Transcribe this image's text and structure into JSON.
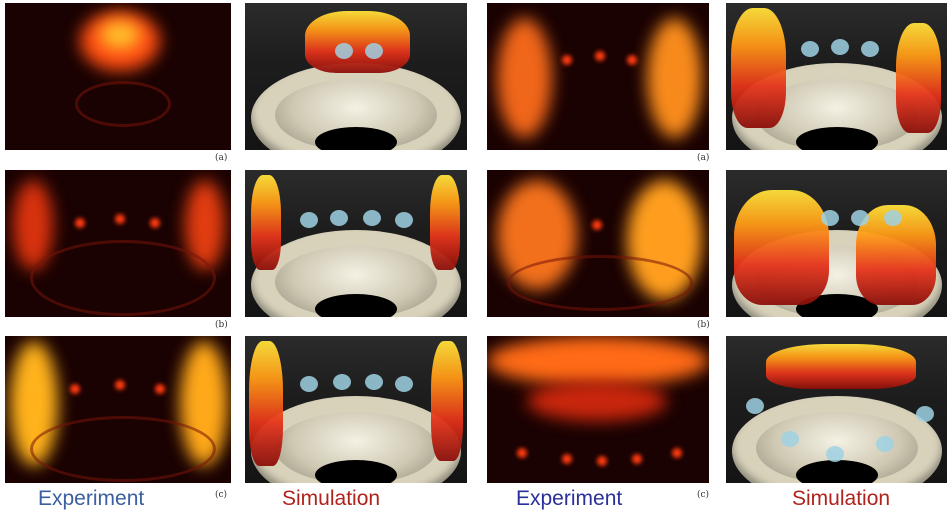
{
  "left_group": {
    "tags": [
      "(a)",
      "(b)",
      "(c)"
    ],
    "caption_experiment": "Experiment",
    "caption_simulation": "Simulation"
  },
  "right_group": {
    "tags": [
      "(a)",
      "(b)",
      "(c)"
    ],
    "caption_experiment": "Experiment",
    "caption_simulation": "Simulation"
  },
  "colors": {
    "experiment_caption": "#3b5fa0",
    "simulation_caption": "#b0231c",
    "flame_bright": "#ffd21a",
    "flame_mid": "#f04a12",
    "flame_dark": "#5a0805",
    "spray": "#9fd1e3",
    "annulus": "#d8d2bb"
  }
}
